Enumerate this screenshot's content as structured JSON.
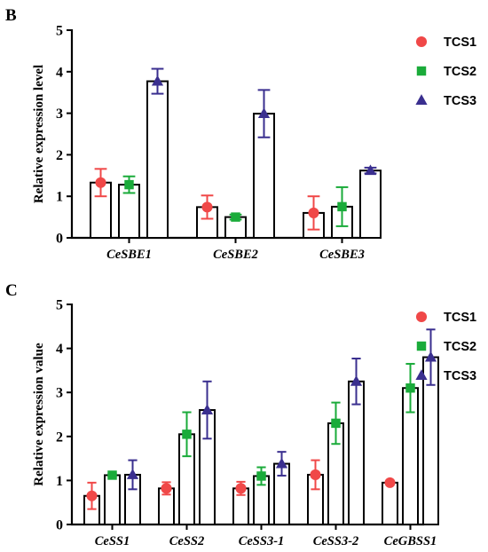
{
  "chart_data": [
    {
      "panel": "B",
      "type": "bar",
      "ylabel": "Relative expression level",
      "ylim": [
        0,
        5
      ],
      "yticks": [
        0,
        1,
        2,
        3,
        4,
        5
      ],
      "categories": [
        "CeSBE1",
        "CeSBE2",
        "CeSBE3"
      ],
      "series": [
        {
          "name": "TCS1",
          "color": "#f04848",
          "marker": "circle",
          "values": [
            1.33,
            0.74,
            0.6
          ],
          "errors": [
            0.33,
            0.28,
            0.4
          ]
        },
        {
          "name": "TCS2",
          "color": "#1aab3a",
          "marker": "square",
          "values": [
            1.28,
            0.5,
            0.75
          ],
          "errors": [
            0.2,
            0.06,
            0.47
          ]
        },
        {
          "name": "TCS3",
          "color": "#3a2f8f",
          "marker": "triangle",
          "values": [
            3.77,
            2.99,
            1.62
          ],
          "errors": [
            0.3,
            0.57,
            0.07
          ]
        }
      ],
      "legend_position": "top-right"
    },
    {
      "panel": "C",
      "type": "bar",
      "ylabel": "Relative expression value",
      "ylim": [
        0,
        5
      ],
      "yticks": [
        0,
        1,
        2,
        3,
        4,
        5
      ],
      "categories": [
        "CeSS1",
        "CeSS2",
        "CeSS3-1",
        "CeSS3-2",
        "CeGBSS1"
      ],
      "series": [
        {
          "name": "TCS1",
          "color": "#f04848",
          "marker": "circle",
          "values": [
            0.65,
            0.82,
            0.82,
            1.13,
            0.95
          ],
          "errors": [
            0.3,
            0.14,
            0.15,
            0.33,
            0.03
          ]
        },
        {
          "name": "TCS2",
          "color": "#1aab3a",
          "marker": "square",
          "values": [
            1.12,
            2.05,
            1.1,
            2.3,
            3.1
          ],
          "errors": [
            0.03,
            0.5,
            0.2,
            0.47,
            0.55
          ]
        },
        {
          "name": "TCS3",
          "color": "#3a2f8f",
          "marker": "triangle",
          "values": [
            1.13,
            2.6,
            1.38,
            3.25,
            3.8
          ],
          "errors": [
            0.33,
            0.65,
            0.27,
            0.52,
            0.63
          ]
        }
      ],
      "legend_position": "top-right"
    }
  ]
}
